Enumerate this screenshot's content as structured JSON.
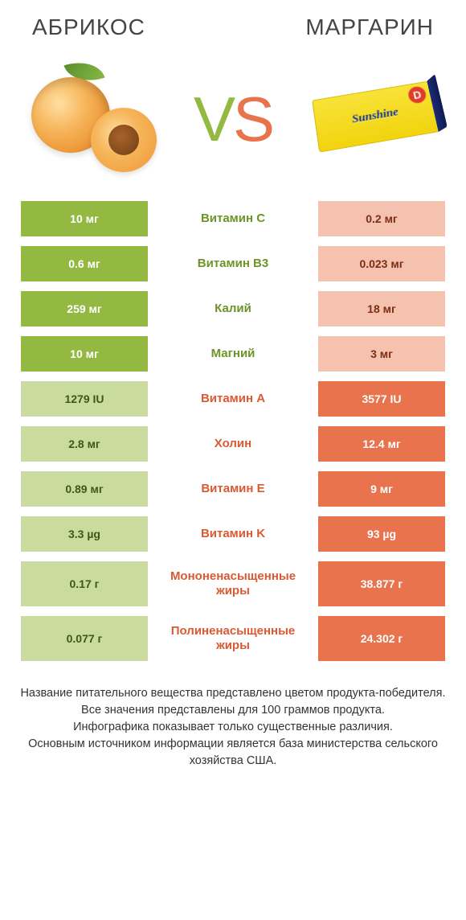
{
  "header": {
    "left_title": "АБРИКОС",
    "right_title": "МАРГАРИН",
    "vs_v": "V",
    "vs_s": "S",
    "margarine_label": "Sunshine",
    "margarine_d": "D"
  },
  "colors": {
    "green": "#93b943",
    "green_light": "#cadba0",
    "green_text": "#6d9329",
    "orange": "#e8734d",
    "orange_light": "#f4c2af",
    "orange_text": "#d95a33",
    "background": "#ffffff"
  },
  "table": {
    "rows": [
      {
        "left": "10 мг",
        "mid": "Витамин C",
        "right": "0.2 мг",
        "winner": "left",
        "tall": false
      },
      {
        "left": "0.6 мг",
        "mid": "Витамин B3",
        "right": "0.023 мг",
        "winner": "left",
        "tall": false
      },
      {
        "left": "259 мг",
        "mid": "Калий",
        "right": "18 мг",
        "winner": "left",
        "tall": false
      },
      {
        "left": "10 мг",
        "mid": "Магний",
        "right": "3 мг",
        "winner": "left",
        "tall": false
      },
      {
        "left": "1279 IU",
        "mid": "Витамин A",
        "right": "3577 IU",
        "winner": "right",
        "tall": false
      },
      {
        "left": "2.8 мг",
        "mid": "Холин",
        "right": "12.4 мг",
        "winner": "right",
        "tall": false
      },
      {
        "left": "0.89 мг",
        "mid": "Витамин E",
        "right": "9 мг",
        "winner": "right",
        "tall": false
      },
      {
        "left": "3.3 µg",
        "mid": "Витамин K",
        "right": "93 µg",
        "winner": "right",
        "tall": false
      },
      {
        "left": "0.17 г",
        "mid": "Мононенасыщенные жиры",
        "right": "38.877 г",
        "winner": "right",
        "tall": true
      },
      {
        "left": "0.077 г",
        "mid": "Полиненасыщенные жиры",
        "right": "24.302 г",
        "winner": "right",
        "tall": true
      }
    ]
  },
  "footnote": {
    "line1": "Название питательного вещества представлено цветом продукта-победителя.",
    "line2": "Все значения представлены для 100 граммов продукта.",
    "line3": "Инфографика показывает только существенные различия.",
    "line4": "Основным источником информации является база министерства сельского хозяйства США."
  }
}
